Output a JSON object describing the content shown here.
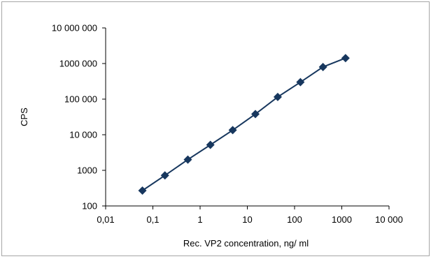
{
  "chart_data": {
    "type": "line",
    "title": "",
    "xlabel": "Rec. VP2 concentration, ng/ ml",
    "ylabel": "CPS",
    "x_scale": "log",
    "y_scale": "log",
    "xlim": [
      0.01,
      10000
    ],
    "ylim": [
      100,
      10000000
    ],
    "x_ticks": [
      0.01,
      0.1,
      1,
      10,
      100,
      1000,
      10000
    ],
    "x_tick_labels": [
      "0,01",
      "0,1",
      "1",
      "10",
      "100",
      "1000",
      "10 000"
    ],
    "y_ticks": [
      100,
      1000,
      10000,
      100000,
      1000000,
      10000000
    ],
    "y_tick_labels": [
      "100",
      "1000",
      "10 000",
      "100 000",
      "1000 000",
      "10 000 000"
    ],
    "grid": false,
    "legend": false,
    "series": [
      {
        "marker": "diamond",
        "color": "#17375e",
        "x": [
          0.06,
          0.18,
          0.55,
          1.65,
          4.9,
          14.8,
          44,
          133,
          400,
          1200
        ],
        "y": [
          270,
          720,
          2000,
          5200,
          13500,
          38000,
          115000,
          300000,
          800000,
          1420000
        ]
      }
    ]
  }
}
